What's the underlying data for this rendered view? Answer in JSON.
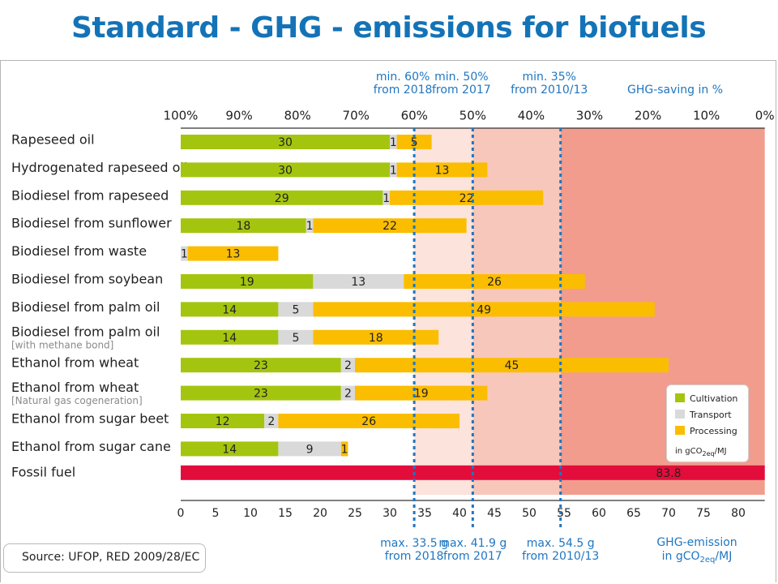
{
  "title": "Standard - GHG - emissions for biofuels",
  "source": "Source: UFOP, RED 2009/28/EC",
  "legend": {
    "cultivation": "Cultivation",
    "transport": "Transport",
    "processing": "Processing",
    "unit_prefix": "in gCO",
    "unit_sub": "2eq",
    "unit_suffix": "/MJ"
  },
  "colors": {
    "cultivation": "#a4c50f",
    "transport": "#d9d9d9",
    "processing": "#fbbd00",
    "fossil": "#e30d3b",
    "title": "#1473b7",
    "zone_light": "#fce3dc",
    "zone_mid": "#f8c7bb",
    "zone_dark": "#f29c8e",
    "threshold_line": "#1f76c0"
  },
  "chart_data": {
    "type": "bar",
    "orientation": "horizontal",
    "stacked": true,
    "x_axis": {
      "min": 0,
      "max": 83.8,
      "ticks": [
        0,
        5,
        10,
        15,
        20,
        25,
        30,
        35,
        40,
        45,
        50,
        55,
        60,
        65,
        70,
        75,
        80
      ],
      "label_line1": "GHG-emission",
      "label_line2_prefix": "in gCO",
      "label_line2_sub": "2eq",
      "label_line2_suffix": "/MJ"
    },
    "top_axis": {
      "ticks": [
        "100%",
        "90%",
        "80%",
        "70%",
        "60%",
        "50%",
        "40%",
        "30%",
        "20%",
        "10%",
        "0%"
      ],
      "label": "GHG-saving in %"
    },
    "thresholds": [
      {
        "value": 33.5,
        "top_line1": "min. 60%",
        "top_line2": "from 2018",
        "bottom_line1": "max. 33.5 g",
        "bottom_line2": "from 2018"
      },
      {
        "value": 41.9,
        "top_line1": "min. 50%",
        "top_line2": "from 2017",
        "bottom_line1": "max. 41.9 g",
        "bottom_line2": "from 2017"
      },
      {
        "value": 54.5,
        "top_line1": "min. 35%",
        "top_line2": "from 2010/13",
        "bottom_line1": "max. 54.5 g",
        "bottom_line2": "from 2010/13"
      }
    ],
    "series_names": [
      "Cultivation",
      "Transport",
      "Processing"
    ],
    "rows": [
      {
        "label": "Rapeseed oil",
        "sublabel": "",
        "values": [
          30,
          1,
          5
        ]
      },
      {
        "label": "Hydrogenated rapeseed oil",
        "sublabel": "",
        "values": [
          30,
          1,
          13
        ]
      },
      {
        "label": "Biodiesel from rapeseed",
        "sublabel": "",
        "values": [
          29,
          1,
          22
        ]
      },
      {
        "label": "Biodiesel from sunflower",
        "sublabel": "",
        "values": [
          18,
          1,
          22
        ]
      },
      {
        "label": "Biodiesel from waste",
        "sublabel": "",
        "values": [
          0,
          1,
          13
        ]
      },
      {
        "label": "Biodiesel from soybean",
        "sublabel": "",
        "values": [
          19,
          13,
          26
        ]
      },
      {
        "label": "Biodiesel from palm oil",
        "sublabel": "",
        "values": [
          14,
          5,
          49
        ]
      },
      {
        "label": "Biodiesel from palm oil",
        "sublabel": "[with methane bond]",
        "values": [
          14,
          5,
          18
        ]
      },
      {
        "label": "Ethanol from wheat",
        "sublabel": "",
        "values": [
          23,
          2,
          45
        ]
      },
      {
        "label": "Ethanol from wheat",
        "sublabel": "[Natural gas cogeneration]",
        "values": [
          23,
          2,
          19
        ]
      },
      {
        "label": "Ethanol from sugar beet",
        "sublabel": "",
        "values": [
          12,
          2,
          26
        ]
      },
      {
        "label": "Ethanol from sugar cane",
        "sublabel": "",
        "values": [
          14,
          9,
          1
        ]
      }
    ],
    "fossil": {
      "label": "Fossil fuel",
      "value": 83.8,
      "value_label": "83.8"
    }
  }
}
